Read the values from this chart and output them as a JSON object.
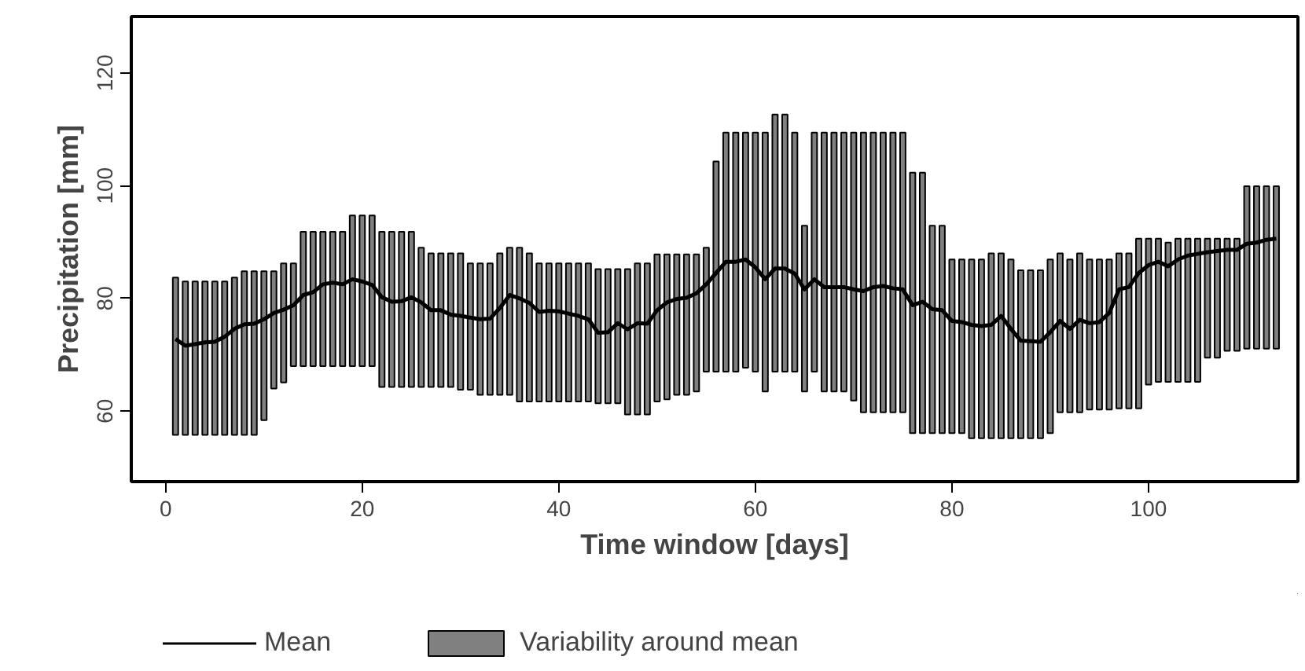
{
  "chart_data": {
    "type": "bar",
    "xlabel": "Time window [days]",
    "ylabel": "Precipitation [mm]",
    "x": [
      1,
      2,
      3,
      4,
      5,
      6,
      7,
      8,
      9,
      10,
      11,
      12,
      13,
      14,
      15,
      16,
      17,
      18,
      19,
      20,
      21,
      22,
      23,
      24,
      25,
      26,
      27,
      28,
      29,
      30,
      31,
      32,
      33,
      34,
      35,
      36,
      37,
      38,
      39,
      40,
      41,
      42,
      43,
      44,
      45,
      46,
      47,
      48,
      49,
      50,
      51,
      52,
      53,
      54,
      55,
      56,
      57,
      58,
      59,
      60,
      61,
      62,
      63,
      64,
      65,
      66,
      67,
      68,
      69,
      70,
      71,
      72,
      73,
      74,
      75,
      76,
      77,
      78,
      79,
      80,
      81,
      82,
      83,
      84,
      85,
      86,
      87,
      88,
      89,
      90,
      91,
      92,
      93,
      94,
      95,
      96,
      97,
      98,
      99,
      100,
      101,
      102,
      103,
      104,
      105,
      106,
      107,
      108,
      109,
      110,
      111,
      112,
      113
    ],
    "series": [
      {
        "name": "Variability around mean",
        "color": "#808080",
        "base": [
          55.8,
          55.8,
          55.8,
          55.8,
          55.8,
          55.8,
          55.8,
          55.8,
          55.8,
          58.4,
          64.0,
          65.1,
          68.0,
          68.0,
          68.0,
          68.0,
          68.0,
          68.0,
          68.0,
          68.0,
          68.0,
          64.3,
          64.3,
          64.3,
          64.3,
          64.3,
          64.3,
          64.3,
          64.3,
          63.8,
          63.8,
          62.9,
          62.9,
          62.9,
          62.9,
          61.7,
          61.7,
          61.7,
          61.7,
          61.7,
          61.7,
          61.7,
          61.7,
          61.4,
          61.4,
          61.4,
          59.4,
          59.4,
          59.4,
          61.7,
          62.1,
          62.9,
          62.9,
          63.5,
          67.0,
          67.0,
          67.0,
          67.0,
          67.7,
          67.0,
          63.5,
          67.0,
          67.0,
          67.0,
          63.5,
          67.0,
          63.5,
          63.5,
          63.5,
          61.9,
          59.8,
          59.8,
          59.8,
          59.8,
          59.8,
          56.1,
          56.1,
          56.1,
          56.1,
          56.1,
          56.1,
          55.2,
          55.2,
          55.2,
          55.2,
          55.2,
          55.2,
          55.2,
          55.2,
          56.1,
          59.8,
          59.8,
          59.8,
          60.3,
          60.3,
          60.3,
          60.5,
          60.5,
          60.5,
          64.7,
          65.2,
          65.2,
          65.2,
          65.2,
          65.2,
          69.5,
          69.5,
          70.7,
          70.7,
          71.1,
          71.1,
          71.1,
          71.1
        ],
        "values": [
          27.9,
          27.2,
          27.2,
          27.2,
          27.2,
          27.2,
          27.9,
          29.0,
          29.0,
          26.4,
          20.8,
          21.1,
          18.2,
          23.8,
          23.8,
          23.8,
          23.8,
          23.8,
          26.7,
          26.7,
          26.7,
          27.5,
          27.5,
          27.5,
          27.5,
          24.7,
          23.7,
          23.7,
          23.7,
          24.2,
          22.4,
          23.3,
          23.3,
          25.1,
          26.1,
          27.3,
          26.3,
          24.5,
          24.5,
          24.5,
          24.5,
          24.5,
          24.5,
          23.8,
          23.8,
          23.8,
          25.8,
          26.8,
          26.8,
          26.1,
          25.7,
          24.9,
          24.9,
          24.3,
          22.0,
          37.3,
          42.4,
          42.4,
          41.7,
          42.4,
          45.9,
          45.6,
          45.6,
          42.4,
          29.4,
          42.4,
          45.9,
          45.9,
          45.9,
          47.5,
          49.6,
          49.6,
          49.6,
          49.6,
          49.6,
          46.2,
          46.2,
          36.8,
          36.8,
          30.8,
          30.8,
          31.7,
          31.7,
          32.8,
          32.8,
          31.7,
          29.8,
          29.8,
          29.8,
          30.8,
          28.2,
          27.1,
          28.2,
          26.6,
          26.6,
          26.6,
          27.5,
          27.5,
          30.1,
          25.9,
          25.4,
          24.7,
          25.4,
          25.4,
          25.4,
          21.1,
          21.1,
          19.9,
          19.9,
          28.8,
          28.8,
          28.8,
          28.8
        ]
      },
      {
        "name": "Mean",
        "type": "line",
        "color": "#000000",
        "values": [
          72.8,
          71.6,
          71.9,
          72.2,
          72.3,
          73.2,
          74.6,
          75.4,
          75.5,
          76.3,
          77.4,
          78.0,
          78.8,
          80.6,
          81.1,
          82.5,
          82.8,
          82.5,
          83.4,
          83.0,
          82.4,
          80.2,
          79.4,
          79.5,
          80.2,
          79.3,
          77.9,
          77.9,
          77.1,
          76.9,
          76.6,
          76.3,
          76.4,
          78.3,
          80.6,
          80.0,
          79.2,
          77.6,
          77.8,
          77.7,
          77.3,
          76.9,
          76.3,
          73.9,
          74.0,
          75.6,
          74.5,
          75.6,
          75.5,
          77.9,
          79.3,
          79.9,
          80.1,
          80.9,
          82.5,
          84.5,
          86.5,
          86.5,
          86.9,
          85.5,
          83.4,
          85.3,
          85.3,
          84.4,
          81.6,
          83.4,
          82.0,
          82.0,
          82.0,
          81.6,
          81.3,
          82.0,
          82.2,
          81.8,
          81.6,
          78.8,
          79.4,
          78.1,
          77.9,
          76.0,
          75.8,
          75.3,
          75.1,
          75.3,
          76.9,
          74.6,
          72.5,
          72.4,
          72.3,
          74.0,
          76.0,
          74.6,
          76.2,
          75.6,
          75.8,
          77.4,
          81.6,
          82.0,
          84.5,
          85.9,
          86.5,
          85.7,
          86.9,
          87.6,
          87.9,
          88.2,
          88.4,
          88.6,
          88.6,
          89.7,
          89.9,
          90.4,
          90.6
        ]
      }
    ],
    "xlim": [
      -3.5,
      115.2
    ],
    "ylim": [
      47.5,
      130
    ],
    "xticks": [
      0,
      20,
      40,
      60,
      80,
      100
    ],
    "yticks": [
      60,
      80,
      100,
      120
    ],
    "grid": false,
    "legend": "bottom"
  }
}
